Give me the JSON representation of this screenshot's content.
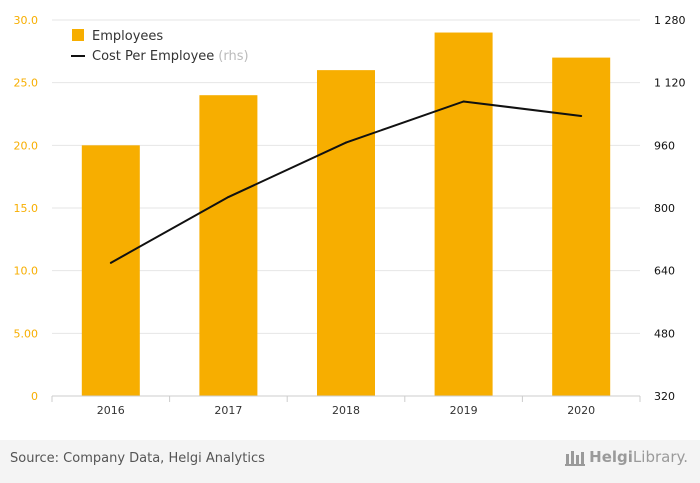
{
  "chart_data": {
    "type": "bar+line",
    "categories": [
      "2016",
      "2017",
      "2018",
      "2019",
      "2020"
    ],
    "series": [
      {
        "name": "Employees",
        "kind": "bar",
        "axis": "left",
        "color": "#f7ae00",
        "values": [
          20.0,
          24.0,
          26.0,
          29.0,
          27.0
        ]
      },
      {
        "name": "Cost Per Employee",
        "legend_suffix": "(rhs)",
        "kind": "line",
        "axis": "right",
        "color": "#111111",
        "values": [
          660,
          828,
          967,
          1072,
          1035
        ]
      }
    ],
    "y_left": {
      "min": 0,
      "max": 30,
      "ticks": [
        "0",
        "5.00",
        "10.0",
        "15.0",
        "20.0",
        "25.0",
        "30.0"
      ],
      "tick_color": "#f7ae00"
    },
    "y_right": {
      "min": 320,
      "max": 1280,
      "ticks": [
        "320",
        "480",
        "640",
        "800",
        "960",
        "1 120",
        "1 280"
      ]
    },
    "grid": true,
    "legend_position": "top-left"
  },
  "footer": {
    "source": "Source: Company Data, Helgi Analytics",
    "brand_part1": "Helgi",
    "brand_part2": "Library."
  }
}
